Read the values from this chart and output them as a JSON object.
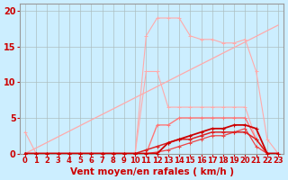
{
  "background_color": "#cceeff",
  "grid_color": "#aabbbb",
  "xlabel": "Vent moyen/en rafales ( km/h )",
  "xlabel_color": "#cc0000",
  "xlabel_fontsize": 7.5,
  "tick_color": "#cc0000",
  "ytick_fontsize": 7,
  "xtick_fontsize": 6,
  "ylim": [
    0,
    21
  ],
  "yticks": [
    0,
    5,
    10,
    15,
    20
  ],
  "x": [
    0,
    1,
    2,
    3,
    4,
    5,
    6,
    7,
    8,
    9,
    10,
    11,
    12,
    13,
    14,
    15,
    16,
    17,
    18,
    19,
    20,
    21,
    22,
    23
  ],
  "diag_y": [
    0,
    0.78,
    1.56,
    2.35,
    3.13,
    3.91,
    4.7,
    5.48,
    6.26,
    7.04,
    7.83,
    8.61,
    9.39,
    10.17,
    10.96,
    11.74,
    12.52,
    13.3,
    14.09,
    14.87,
    15.65,
    16.43,
    17.22,
    18.0
  ],
  "rafales_y": [
    0,
    0,
    0,
    0,
    0,
    0,
    0,
    0,
    0,
    0,
    0,
    16.5,
    19,
    19,
    19,
    16.5,
    16,
    16,
    15.5,
    15.5,
    16,
    11.5,
    2,
    0
  ],
  "peak_medium_y": [
    3,
    0,
    0,
    0,
    0,
    0,
    0,
    0,
    0,
    0,
    0,
    11.5,
    11.5,
    6.5,
    6.5,
    6.5,
    6.5,
    6.5,
    6.5,
    6.5,
    6.5,
    2,
    0,
    0
  ],
  "medium_y": [
    0,
    0,
    0,
    0,
    0,
    0,
    0,
    0,
    0,
    0,
    0,
    0,
    4,
    4,
    5,
    5,
    5,
    5,
    5,
    5,
    5,
    2,
    0,
    0
  ],
  "low1_y": [
    0,
    0,
    0,
    0,
    0,
    0,
    0,
    0,
    0,
    0,
    0,
    0,
    0,
    1.5,
    2,
    2.5,
    3,
    3.5,
    3.5,
    4,
    4,
    3.5,
    0,
    0
  ],
  "low2_y": [
    0,
    0,
    0,
    0,
    0,
    0,
    0,
    0,
    0,
    0,
    0,
    0.5,
    1,
    1.5,
    2,
    2,
    2.5,
    3,
    3,
    3,
    3,
    2,
    0,
    0
  ],
  "low3_y": [
    0,
    0,
    0,
    0,
    0,
    0,
    0,
    0,
    0,
    0,
    0,
    0,
    0.2,
    0.5,
    1,
    1.5,
    2,
    2.5,
    2.5,
    3,
    3.5,
    1,
    0,
    0
  ],
  "diag_color": "#ffaaaa",
  "rafales_color": "#ffaaaa",
  "peak_medium_color": "#ffaaaa",
  "medium_color": "#ff7777",
  "low1_color": "#cc0000",
  "low2_color": "#dd2222",
  "low3_color": "#ee4444"
}
